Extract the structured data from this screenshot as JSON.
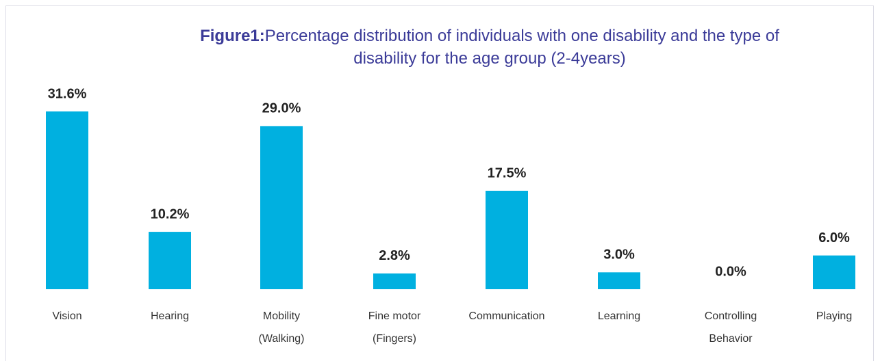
{
  "chart_data": {
    "type": "bar",
    "title_label": "Figure1:",
    "title": "Percentage distribution of individuals with one disability and the type of disability for the age group (2-4years)",
    "categories": [
      [
        "Vision"
      ],
      [
        "Hearing"
      ],
      [
        "Mobility",
        "(Walking)"
      ],
      [
        "Fine motor",
        "(Fingers)"
      ],
      [
        "Communication"
      ],
      [
        "Learning"
      ],
      [
        "Controlling",
        "Behavior"
      ],
      [
        "Playing"
      ]
    ],
    "values": [
      31.6,
      10.2,
      29.0,
      2.8,
      17.5,
      3.0,
      0.0,
      6.0
    ],
    "value_labels": [
      "31.6%",
      "10.2%",
      "29.0%",
      "2.8%",
      "17.5%",
      "3.0%",
      "0.0%",
      "6.0%"
    ],
    "color": "#00b0e0"
  }
}
